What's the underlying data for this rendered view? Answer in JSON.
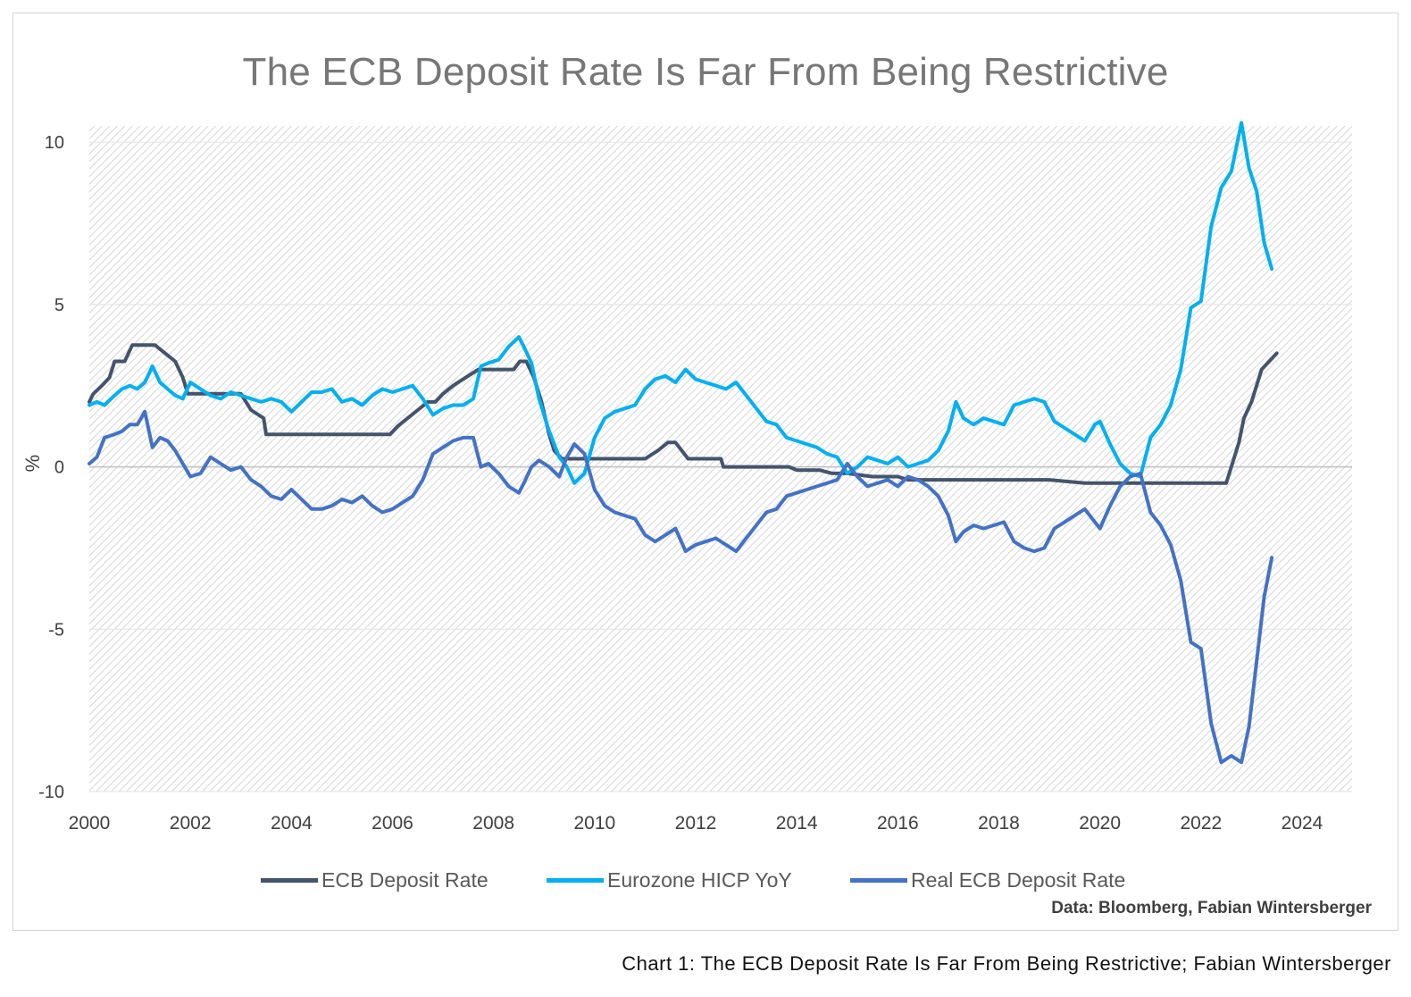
{
  "caption": "Chart 1: The ECB Deposit Rate Is Far From Being Restrictive; Fabian Wintersberger",
  "source_note": "Data: Bloomberg, Fabian Wintersberger",
  "chart_data": {
    "type": "line",
    "title": "The ECB Deposit Rate Is Far From Being Restrictive",
    "xlabel": "",
    "ylabel": "%",
    "xlim": [
      2000,
      2024
    ],
    "ylim": [
      -10,
      10.5
    ],
    "x_ticks": [
      "2000",
      "2002",
      "2004",
      "2006",
      "2008",
      "2010",
      "2012",
      "2014",
      "2016",
      "2018",
      "2020",
      "2022",
      "2024"
    ],
    "y_ticks": [
      "10",
      "5",
      "0",
      "-5",
      "-10"
    ],
    "grid": "horizontal",
    "legend_position": "bottom",
    "series": [
      {
        "name": "ECB Deposit Rate",
        "color": "#44546a",
        "x": [
          2000.0,
          2000.08,
          2000.25,
          2000.4,
          2000.5,
          2000.7,
          2000.85,
          2001.0,
          2001.3,
          2001.5,
          2001.7,
          2001.85,
          2001.95,
          2002.2,
          2002.5,
          2003.0,
          2003.2,
          2003.45,
          2003.5,
          2004.5,
          2005.5,
          2005.95,
          2006.1,
          2006.3,
          2006.5,
          2006.7,
          2006.85,
          2007.0,
          2007.2,
          2007.45,
          2007.7,
          2008.0,
          2008.4,
          2008.52,
          2008.65,
          2008.8,
          2008.95,
          2009.1,
          2009.2,
          2009.35,
          2009.5,
          2010.0,
          2011.0,
          2011.25,
          2011.45,
          2011.6,
          2011.85,
          2011.95,
          2012.5,
          2012.55,
          2013.0,
          2013.85,
          2014.0,
          2014.45,
          2014.7,
          2015.0,
          2015.5,
          2016.0,
          2016.2,
          2017.0,
          2018.0,
          2019.0,
          2019.7,
          2020.0,
          2021.0,
          2022.0,
          2022.5,
          2022.6,
          2022.75,
          2022.85,
          2023.0,
          2023.1,
          2023.2,
          2023.35,
          2023.5
        ],
        "values": [
          2.0,
          2.25,
          2.5,
          2.75,
          3.25,
          3.25,
          3.75,
          3.75,
          3.75,
          3.5,
          3.25,
          2.75,
          2.25,
          2.25,
          2.25,
          2.25,
          1.75,
          1.5,
          1.0,
          1.0,
          1.0,
          1.0,
          1.25,
          1.5,
          1.75,
          2.0,
          2.0,
          2.25,
          2.5,
          2.75,
          3.0,
          3.0,
          3.0,
          3.25,
          3.25,
          2.75,
          2.0,
          1.0,
          0.5,
          0.25,
          0.25,
          0.25,
          0.25,
          0.5,
          0.75,
          0.75,
          0.25,
          0.25,
          0.25,
          0.0,
          0.0,
          0.0,
          -0.1,
          -0.1,
          -0.2,
          -0.2,
          -0.3,
          -0.3,
          -0.4,
          -0.4,
          -0.4,
          -0.4,
          -0.5,
          -0.5,
          -0.5,
          -0.5,
          -0.5,
          0.0,
          0.75,
          1.5,
          2.0,
          2.5,
          3.0,
          3.25,
          3.5
        ]
      },
      {
        "name": "Eurozone HICP YoY",
        "color": "#00b0f0",
        "x": [
          2000.0,
          2000.15,
          2000.3,
          2000.5,
          2000.65,
          2000.8,
          2000.95,
          2001.1,
          2001.25,
          2001.4,
          2001.55,
          2001.7,
          2001.85,
          2002.0,
          2002.2,
          2002.4,
          2002.6,
          2002.8,
          2003.0,
          2003.2,
          2003.4,
          2003.6,
          2003.8,
          2004.0,
          2004.2,
          2004.4,
          2004.6,
          2004.8,
          2005.0,
          2005.2,
          2005.4,
          2005.6,
          2005.8,
          2006.0,
          2006.2,
          2006.4,
          2006.6,
          2006.8,
          2007.0,
          2007.2,
          2007.4,
          2007.6,
          2007.75,
          2007.9,
          2008.1,
          2008.3,
          2008.5,
          2008.6,
          2008.75,
          2008.9,
          2009.1,
          2009.3,
          2009.45,
          2009.6,
          2009.8,
          2010.0,
          2010.2,
          2010.4,
          2010.6,
          2010.8,
          2011.0,
          2011.2,
          2011.4,
          2011.6,
          2011.8,
          2012.0,
          2012.2,
          2012.4,
          2012.6,
          2012.8,
          2013.0,
          2013.2,
          2013.4,
          2013.6,
          2013.8,
          2014.0,
          2014.2,
          2014.4,
          2014.6,
          2014.8,
          2015.0,
          2015.2,
          2015.4,
          2015.6,
          2015.8,
          2016.0,
          2016.2,
          2016.4,
          2016.6,
          2016.8,
          2017.0,
          2017.15,
          2017.3,
          2017.5,
          2017.7,
          2017.9,
          2018.1,
          2018.3,
          2018.5,
          2018.7,
          2018.9,
          2019.1,
          2019.3,
          2019.5,
          2019.7,
          2019.9,
          2020.0,
          2020.2,
          2020.4,
          2020.6,
          2020.8,
          2021.0,
          2021.2,
          2021.4,
          2021.6,
          2021.8,
          2022.0,
          2022.2,
          2022.4,
          2022.6,
          2022.8,
          2022.95,
          2023.1,
          2023.25,
          2023.4
        ],
        "values": [
          1.9,
          2.0,
          1.9,
          2.2,
          2.4,
          2.5,
          2.4,
          2.6,
          3.1,
          2.6,
          2.4,
          2.2,
          2.1,
          2.6,
          2.4,
          2.2,
          2.1,
          2.3,
          2.2,
          2.1,
          2.0,
          2.1,
          2.0,
          1.7,
          2.0,
          2.3,
          2.3,
          2.4,
          2.0,
          2.1,
          1.9,
          2.2,
          2.4,
          2.3,
          2.4,
          2.5,
          2.1,
          1.6,
          1.8,
          1.9,
          1.9,
          2.1,
          3.1,
          3.2,
          3.3,
          3.7,
          4.0,
          3.7,
          3.2,
          2.1,
          1.1,
          0.3,
          0.0,
          -0.5,
          -0.2,
          0.9,
          1.5,
          1.7,
          1.8,
          1.9,
          2.4,
          2.7,
          2.8,
          2.6,
          3.0,
          2.7,
          2.6,
          2.5,
          2.4,
          2.6,
          2.2,
          1.8,
          1.4,
          1.3,
          0.9,
          0.8,
          0.7,
          0.6,
          0.4,
          0.3,
          -0.2,
          0.0,
          0.3,
          0.2,
          0.1,
          0.3,
          0.0,
          0.1,
          0.2,
          0.5,
          1.1,
          2.0,
          1.5,
          1.3,
          1.5,
          1.4,
          1.3,
          1.9,
          2.0,
          2.1,
          2.0,
          1.4,
          1.2,
          1.0,
          0.8,
          1.3,
          1.4,
          0.7,
          0.1,
          -0.2,
          -0.3,
          0.9,
          1.3,
          1.9,
          3.0,
          4.9,
          5.1,
          7.4,
          8.6,
          9.1,
          10.6,
          9.2,
          8.5,
          6.9,
          6.1
        ]
      },
      {
        "name": "Real ECB Deposit Rate",
        "color": "#4472c4",
        "x": [
          2000.0,
          2000.15,
          2000.3,
          2000.5,
          2000.65,
          2000.8,
          2000.95,
          2001.1,
          2001.25,
          2001.4,
          2001.55,
          2001.7,
          2001.85,
          2002.0,
          2002.2,
          2002.4,
          2002.6,
          2002.8,
          2003.0,
          2003.2,
          2003.4,
          2003.6,
          2003.8,
          2004.0,
          2004.2,
          2004.4,
          2004.6,
          2004.8,
          2005.0,
          2005.2,
          2005.4,
          2005.6,
          2005.8,
          2006.0,
          2006.2,
          2006.4,
          2006.6,
          2006.8,
          2007.0,
          2007.2,
          2007.4,
          2007.6,
          2007.75,
          2007.9,
          2008.1,
          2008.3,
          2008.5,
          2008.6,
          2008.75,
          2008.9,
          2009.1,
          2009.3,
          2009.45,
          2009.6,
          2009.8,
          2010.0,
          2010.2,
          2010.4,
          2010.6,
          2010.8,
          2011.0,
          2011.2,
          2011.4,
          2011.6,
          2011.8,
          2012.0,
          2012.2,
          2012.4,
          2012.6,
          2012.8,
          2013.0,
          2013.2,
          2013.4,
          2013.6,
          2013.8,
          2014.0,
          2014.2,
          2014.4,
          2014.6,
          2014.8,
          2015.0,
          2015.2,
          2015.4,
          2015.6,
          2015.8,
          2016.0,
          2016.2,
          2016.4,
          2016.6,
          2016.8,
          2017.0,
          2017.15,
          2017.3,
          2017.5,
          2017.7,
          2017.9,
          2018.1,
          2018.3,
          2018.5,
          2018.7,
          2018.9,
          2019.1,
          2019.3,
          2019.5,
          2019.7,
          2019.9,
          2020.0,
          2020.2,
          2020.4,
          2020.6,
          2020.8,
          2021.0,
          2021.2,
          2021.4,
          2021.6,
          2021.8,
          2022.0,
          2022.2,
          2022.4,
          2022.6,
          2022.8,
          2022.95,
          2023.1,
          2023.25,
          2023.4
        ],
        "values": [
          0.1,
          0.3,
          0.9,
          1.0,
          1.1,
          1.3,
          1.3,
          1.7,
          0.6,
          0.9,
          0.8,
          0.5,
          0.1,
          -0.3,
          -0.2,
          0.3,
          0.1,
          -0.1,
          0.0,
          -0.4,
          -0.6,
          -0.9,
          -1.0,
          -0.7,
          -1.0,
          -1.3,
          -1.3,
          -1.2,
          -1.0,
          -1.1,
          -0.9,
          -1.2,
          -1.4,
          -1.3,
          -1.1,
          -0.9,
          -0.4,
          0.4,
          0.6,
          0.8,
          0.9,
          0.9,
          0.0,
          0.1,
          -0.2,
          -0.6,
          -0.8,
          -0.5,
          0.0,
          0.2,
          0.0,
          -0.3,
          0.3,
          0.7,
          0.4,
          -0.7,
          -1.2,
          -1.4,
          -1.5,
          -1.6,
          -2.1,
          -2.3,
          -2.1,
          -1.9,
          -2.6,
          -2.4,
          -2.3,
          -2.2,
          -2.4,
          -2.6,
          -2.2,
          -1.8,
          -1.4,
          -1.3,
          -0.9,
          -0.8,
          -0.7,
          -0.6,
          -0.5,
          -0.4,
          0.1,
          -0.3,
          -0.6,
          -0.5,
          -0.4,
          -0.6,
          -0.3,
          -0.4,
          -0.6,
          -0.9,
          -1.5,
          -2.3,
          -2.0,
          -1.8,
          -1.9,
          -1.8,
          -1.7,
          -2.3,
          -2.5,
          -2.6,
          -2.5,
          -1.9,
          -1.7,
          -1.5,
          -1.3,
          -1.7,
          -1.9,
          -1.2,
          -0.6,
          -0.3,
          -0.2,
          -1.4,
          -1.8,
          -2.4,
          -3.5,
          -5.4,
          -5.6,
          -7.9,
          -9.1,
          -8.9,
          -9.1,
          -8.0,
          -6.0,
          -4.0,
          -2.8
        ]
      }
    ]
  }
}
